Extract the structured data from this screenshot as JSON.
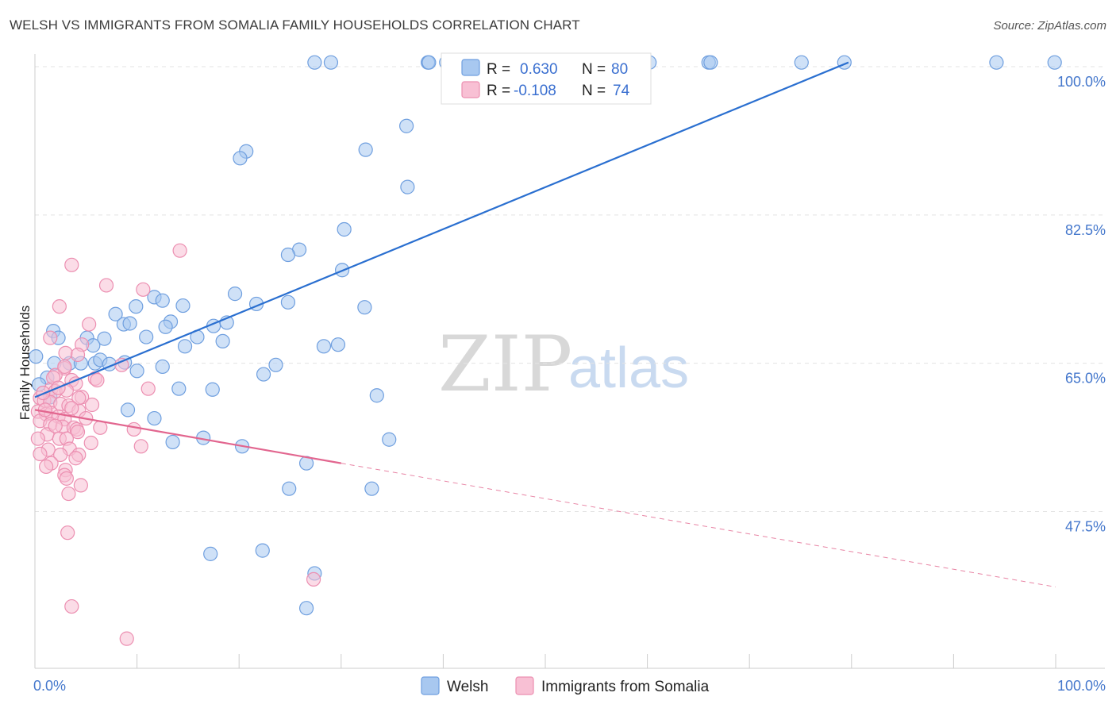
{
  "title": "WELSH VS IMMIGRANTS FROM SOMALIA FAMILY HOUSEHOLDS CORRELATION CHART",
  "source": "Source: ZipAtlas.com",
  "watermark": {
    "part1": "ZIP",
    "part2": "atlas"
  },
  "legend": {
    "r_label": "R =",
    "n_label": "N =",
    "rows": [
      {
        "r": "0.630",
        "n": "80",
        "color": "#a8c8f0",
        "stroke": "#6f9fdf"
      },
      {
        "r": "-0.108",
        "n": "74",
        "color": "#f8c0d4",
        "stroke": "#ec8fb1"
      }
    ]
  },
  "bottom_legend": [
    "Welsh",
    "Immigrants from Somalia"
  ],
  "chart_data": {
    "type": "scatter",
    "title": "WELSH VS IMMIGRANTS FROM SOMALIA FAMILY HOUSEHOLDS CORRELATION CHART",
    "xlabel": "",
    "ylabel": "Family Households",
    "xlim": [
      0,
      100
    ],
    "ylim": [
      29,
      101.5
    ],
    "x_tick_labels": [
      "0.0%",
      "100.0%"
    ],
    "y_ticks": [
      47.5,
      65.0,
      82.5,
      100.0
    ],
    "y_tick_labels": [
      "47.5%",
      "65.0%",
      "82.5%",
      "100.0%"
    ],
    "grid": true,
    "series": [
      {
        "name": "Welsh",
        "color": "#a8c8f0",
        "stroke": "#6f9fdf",
        "trend": {
          "x": [
            0,
            79.7
          ],
          "y": [
            61.0,
            100.5
          ],
          "color": "#2a6fd0"
        },
        "points": [
          [
            27.4,
            100.5
          ],
          [
            29.0,
            100.5
          ],
          [
            38.5,
            100.5
          ],
          [
            38.6,
            100.5
          ],
          [
            40.3,
            100.5
          ],
          [
            47.7,
            100.5
          ],
          [
            55.0,
            100.5
          ],
          [
            60.2,
            100.5
          ],
          [
            66.0,
            100.5
          ],
          [
            66.2,
            100.5
          ],
          [
            75.1,
            100.5
          ],
          [
            79.3,
            100.5
          ],
          [
            94.2,
            100.5
          ],
          [
            99.9,
            100.5
          ],
          [
            36.4,
            93.0
          ],
          [
            20.7,
            90.0
          ],
          [
            32.4,
            90.2
          ],
          [
            20.1,
            89.2
          ],
          [
            36.5,
            85.8
          ],
          [
            30.3,
            80.8
          ],
          [
            25.9,
            78.4
          ],
          [
            24.8,
            77.8
          ],
          [
            30.1,
            76.0
          ],
          [
            11.7,
            72.8
          ],
          [
            9.9,
            71.7
          ],
          [
            12.5,
            72.4
          ],
          [
            14.5,
            71.8
          ],
          [
            19.6,
            73.2
          ],
          [
            21.7,
            72.0
          ],
          [
            24.8,
            72.2
          ],
          [
            32.3,
            71.6
          ],
          [
            7.9,
            70.8
          ],
          [
            8.7,
            69.6
          ],
          [
            9.3,
            69.7
          ],
          [
            13.3,
            69.9
          ],
          [
            12.8,
            69.3
          ],
          [
            17.5,
            69.4
          ],
          [
            18.8,
            69.8
          ],
          [
            1.8,
            68.8
          ],
          [
            2.3,
            68.0
          ],
          [
            5.1,
            68.0
          ],
          [
            6.8,
            67.9
          ],
          [
            10.9,
            68.1
          ],
          [
            15.9,
            68.1
          ],
          [
            5.7,
            67.1
          ],
          [
            18.4,
            67.6
          ],
          [
            14.7,
            67.0
          ],
          [
            28.3,
            67.0
          ],
          [
            29.7,
            67.2
          ],
          [
            0.1,
            65.8
          ],
          [
            1.9,
            65.0
          ],
          [
            3.4,
            65.0
          ],
          [
            4.5,
            65.0
          ],
          [
            5.9,
            65.0
          ],
          [
            6.4,
            65.4
          ],
          [
            7.3,
            64.9
          ],
          [
            8.8,
            65.1
          ],
          [
            10.0,
            64.1
          ],
          [
            12.5,
            64.6
          ],
          [
            23.6,
            64.8
          ],
          [
            22.4,
            63.7
          ],
          [
            1.2,
            63.3
          ],
          [
            14.1,
            62.0
          ],
          [
            17.4,
            61.9
          ],
          [
            33.5,
            61.2
          ],
          [
            1.5,
            61.0
          ],
          [
            9.1,
            59.5
          ],
          [
            11.7,
            58.5
          ],
          [
            16.5,
            56.2
          ],
          [
            13.5,
            55.7
          ],
          [
            34.7,
            56.0
          ],
          [
            20.3,
            55.2
          ],
          [
            26.6,
            53.2
          ],
          [
            24.9,
            50.2
          ],
          [
            33.0,
            50.2
          ],
          [
            17.2,
            42.5
          ],
          [
            22.3,
            42.9
          ],
          [
            27.4,
            40.2
          ],
          [
            26.6,
            36.1
          ],
          [
            0.4,
            62.5
          ]
        ]
      },
      {
        "name": "Immigrants from Somalia",
        "color": "#f8c0d4",
        "stroke": "#ec8fb1",
        "trend": {
          "x": [
            0,
            30.0
          ],
          "y": [
            59.5,
            53.2
          ],
          "color": "#e2668f"
        },
        "trend_dashed": {
          "x": [
            30.0,
            100
          ],
          "y": [
            53.2,
            38.6
          ]
        },
        "points": [
          [
            14.2,
            78.3
          ],
          [
            3.6,
            76.6
          ],
          [
            7.0,
            74.2
          ],
          [
            10.6,
            73.7
          ],
          [
            2.4,
            71.7
          ],
          [
            5.3,
            69.6
          ],
          [
            1.5,
            68.0
          ],
          [
            4.6,
            67.2
          ],
          [
            3.0,
            66.2
          ],
          [
            4.2,
            66.0
          ],
          [
            8.5,
            64.8
          ],
          [
            2.9,
            64.4
          ],
          [
            2.0,
            63.6
          ],
          [
            3.6,
            63.0
          ],
          [
            5.9,
            63.2
          ],
          [
            6.1,
            63.0
          ],
          [
            4.0,
            62.6
          ],
          [
            11.1,
            62.0
          ],
          [
            1.6,
            62.0
          ],
          [
            2.0,
            61.7
          ],
          [
            3.1,
            61.8
          ],
          [
            4.6,
            61.0
          ],
          [
            0.5,
            60.9
          ],
          [
            0.9,
            60.6
          ],
          [
            1.5,
            60.4
          ],
          [
            2.5,
            60.2
          ],
          [
            3.3,
            60.0
          ],
          [
            4.3,
            59.4
          ],
          [
            0.3,
            59.3
          ],
          [
            1.1,
            59.0
          ],
          [
            1.6,
            59.1
          ],
          [
            2.3,
            58.7
          ],
          [
            2.9,
            58.4
          ],
          [
            5.0,
            58.5
          ],
          [
            0.5,
            58.2
          ],
          [
            1.5,
            57.8
          ],
          [
            2.7,
            57.5
          ],
          [
            3.8,
            57.4
          ],
          [
            4.1,
            57.2
          ],
          [
            6.4,
            57.4
          ],
          [
            9.7,
            57.2
          ],
          [
            4.2,
            56.9
          ],
          [
            1.2,
            56.6
          ],
          [
            0.3,
            56.1
          ],
          [
            2.4,
            56.1
          ],
          [
            3.1,
            56.1
          ],
          [
            5.5,
            55.6
          ],
          [
            10.4,
            55.2
          ],
          [
            3.4,
            54.9
          ],
          [
            1.3,
            54.8
          ],
          [
            4.3,
            54.2
          ],
          [
            0.5,
            54.3
          ],
          [
            2.5,
            54.2
          ],
          [
            4.0,
            53.8
          ],
          [
            1.6,
            53.2
          ],
          [
            1.1,
            52.8
          ],
          [
            3.0,
            52.4
          ],
          [
            2.9,
            51.8
          ],
          [
            3.1,
            51.4
          ],
          [
            3.3,
            49.6
          ],
          [
            4.5,
            50.6
          ],
          [
            3.2,
            45.0
          ],
          [
            27.3,
            39.5
          ],
          [
            3.6,
            36.3
          ],
          [
            9.0,
            32.5
          ],
          [
            1.8,
            63.3
          ],
          [
            2.9,
            64.6
          ],
          [
            2.3,
            62.1
          ],
          [
            4.3,
            60.9
          ],
          [
            1.0,
            59.5
          ],
          [
            3.6,
            59.7
          ],
          [
            5.6,
            60.1
          ],
          [
            2.0,
            57.6
          ],
          [
            0.8,
            61.5
          ]
        ]
      }
    ]
  }
}
